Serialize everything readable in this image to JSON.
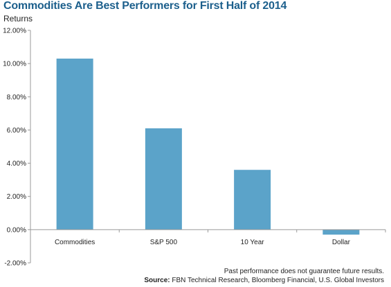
{
  "chart_data": {
    "type": "bar",
    "title": "Commodities Are Best Performers for First Half of 2014",
    "ylabel": "Returns",
    "categories": [
      "Commodities",
      "S&P 500",
      "10 Year",
      "Dollar"
    ],
    "values": [
      10.3,
      6.1,
      3.6,
      -0.3
    ],
    "ylim": [
      -2,
      12
    ],
    "yticks": [
      "-2.00%",
      "0.00%",
      "2.00%",
      "4.00%",
      "6.00%",
      "8.00%",
      "10.00%",
      "12.00%"
    ],
    "ytick_values": [
      -2,
      0,
      2,
      4,
      6,
      8,
      10,
      12
    ],
    "bar_color": "#5ba3c9",
    "grid": false
  },
  "footnotes": {
    "disclaimer": "Past performance does not guarantee future results.",
    "source_label": "Source:",
    "source_text": "FBN Technical Research, Bloomberg Financial, U.S. Global Investors"
  }
}
